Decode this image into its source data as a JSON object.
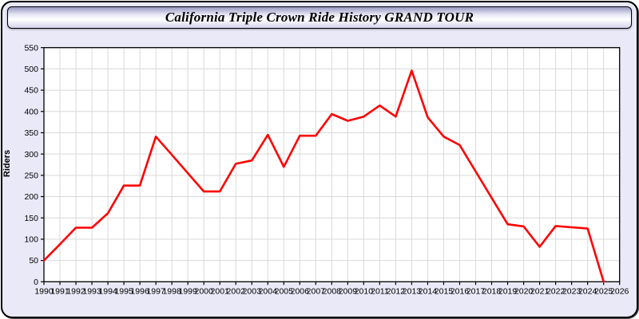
{
  "window": {
    "title": "California Triple Crown Ride History GRAND TOUR"
  },
  "chart_data": {
    "type": "line",
    "title": "California Triple Crown Ride History GRAND TOUR",
    "xlabel": "",
    "ylabel": "Riders",
    "xlim": [
      1990,
      2026
    ],
    "ylim": [
      0,
      550
    ],
    "ytick_step": 50,
    "xtick_step": 1,
    "grid": "on",
    "legend": "none",
    "line_color": "#ff0000",
    "grid_color": "#d9d9d9",
    "panel_background": "#ffffff",
    "page_background": "#e9e9f8",
    "x": [
      1990,
      1991,
      1992,
      1993,
      1994,
      1995,
      1996,
      1997,
      1998,
      1999,
      2000,
      2001,
      2002,
      2003,
      2004,
      2005,
      2006,
      2007,
      2008,
      2009,
      2010,
      2011,
      2012,
      2013,
      2014,
      2015,
      2016,
      2017,
      2018,
      2019,
      2020,
      2021,
      2022,
      2023,
      2024,
      2025
    ],
    "series": [
      {
        "name": "Riders",
        "values": [
          50,
          88,
          127,
          127,
          161,
          226,
          226,
          341,
          298,
          255,
          212,
          212,
          277,
          285,
          345,
          270,
          343,
          343,
          394,
          378,
          388,
          414,
          388,
          496,
          386,
          341,
          321,
          259,
          197,
          135,
          130,
          82,
          131,
          128,
          125,
          0
        ]
      }
    ]
  }
}
